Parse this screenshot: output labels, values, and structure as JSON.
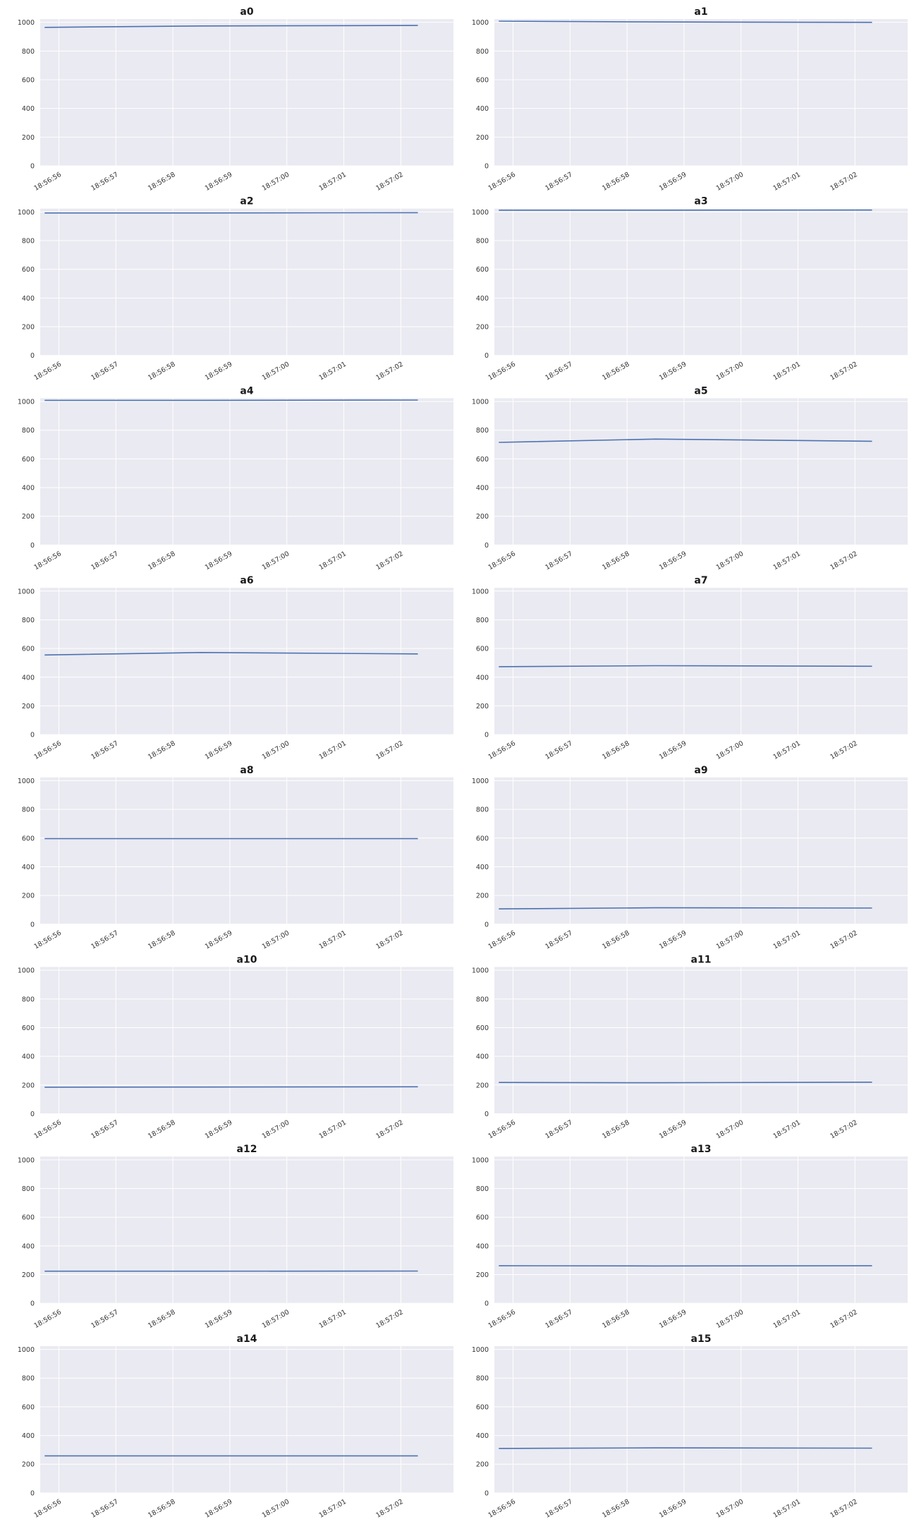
{
  "figure": {
    "background": "#ffffff",
    "axes_facecolor": "#eaeaf2",
    "grid_color": "#ffffff",
    "line_color": "#4c72b0",
    "layout": "8 rows x 2 columns"
  },
  "chart_data": [
    {
      "type": "line",
      "title": "a0",
      "xlabel": "",
      "ylabel": "",
      "x": [
        "18:56:55.75",
        "18:56:58.5",
        "18:57:02.3"
      ],
      "y": [
        965,
        975,
        978
      ],
      "x_ticks": [
        "18:56:56",
        "18:56:57",
        "18:56:58",
        "18:56:59",
        "18:57:00",
        "18:57:01",
        "18:57:02"
      ],
      "y_ticks": [
        0,
        200,
        400,
        600,
        800,
        1000
      ],
      "ylim": [
        0,
        1023
      ],
      "grid": true
    },
    {
      "type": "line",
      "title": "a1",
      "xlabel": "",
      "ylabel": "",
      "x": [
        "18:56:55.75",
        "18:56:58.5",
        "18:57:02.3"
      ],
      "y": [
        1008,
        1003,
        1000
      ],
      "x_ticks": [
        "18:56:56",
        "18:56:57",
        "18:56:58",
        "18:56:59",
        "18:57:00",
        "18:57:01",
        "18:57:02"
      ],
      "y_ticks": [
        0,
        200,
        400,
        600,
        800,
        1000
      ],
      "ylim": [
        0,
        1023
      ],
      "grid": true
    },
    {
      "type": "line",
      "title": "a2",
      "xlabel": "",
      "ylabel": "",
      "x": [
        "18:56:55.75",
        "18:56:58.5",
        "18:57:02.3"
      ],
      "y": [
        993,
        993,
        995
      ],
      "x_ticks": [
        "18:56:56",
        "18:56:57",
        "18:56:58",
        "18:56:59",
        "18:57:00",
        "18:57:01",
        "18:57:02"
      ],
      "y_ticks": [
        0,
        200,
        400,
        600,
        800,
        1000
      ],
      "ylim": [
        0,
        1023
      ],
      "grid": true
    },
    {
      "type": "line",
      "title": "a3",
      "xlabel": "",
      "ylabel": "",
      "x": [
        "18:56:55.75",
        "18:56:58.5",
        "18:57:02.3"
      ],
      "y": [
        1012,
        1012,
        1013
      ],
      "x_ticks": [
        "18:56:56",
        "18:56:57",
        "18:56:58",
        "18:56:59",
        "18:57:00",
        "18:57:01",
        "18:57:02"
      ],
      "y_ticks": [
        0,
        200,
        400,
        600,
        800,
        1000
      ],
      "ylim": [
        0,
        1023
      ],
      "grid": true
    },
    {
      "type": "line",
      "title": "a4",
      "xlabel": "",
      "ylabel": "",
      "x": [
        "18:56:55.75",
        "18:56:58.5",
        "18:57:02.3"
      ],
      "y": [
        1008,
        1008,
        1010
      ],
      "x_ticks": [
        "18:56:56",
        "18:56:57",
        "18:56:58",
        "18:56:59",
        "18:57:00",
        "18:57:01",
        "18:57:02"
      ],
      "y_ticks": [
        0,
        200,
        400,
        600,
        800,
        1000
      ],
      "ylim": [
        0,
        1023
      ],
      "grid": true
    },
    {
      "type": "line",
      "title": "a5",
      "xlabel": "",
      "ylabel": "",
      "x": [
        "18:56:55.75",
        "18:56:58.5",
        "18:57:02.3"
      ],
      "y": [
        715,
        738,
        723
      ],
      "x_ticks": [
        "18:56:56",
        "18:56:57",
        "18:56:58",
        "18:56:59",
        "18:57:00",
        "18:57:01",
        "18:57:02"
      ],
      "y_ticks": [
        0,
        200,
        400,
        600,
        800,
        1000
      ],
      "ylim": [
        0,
        1023
      ],
      "grid": true
    },
    {
      "type": "line",
      "title": "a6",
      "xlabel": "",
      "ylabel": "",
      "x": [
        "18:56:55.75",
        "18:56:58.5",
        "18:57:02.3"
      ],
      "y": [
        555,
        572,
        562
      ],
      "x_ticks": [
        "18:56:56",
        "18:56:57",
        "18:56:58",
        "18:56:59",
        "18:57:00",
        "18:57:01",
        "18:57:02"
      ],
      "y_ticks": [
        0,
        200,
        400,
        600,
        800,
        1000
      ],
      "ylim": [
        0,
        1023
      ],
      "grid": true
    },
    {
      "type": "line",
      "title": "a7",
      "xlabel": "",
      "ylabel": "",
      "x": [
        "18:56:55.75",
        "18:56:58.5",
        "18:57:02.3"
      ],
      "y": [
        473,
        480,
        476
      ],
      "x_ticks": [
        "18:56:56",
        "18:56:57",
        "18:56:58",
        "18:56:59",
        "18:57:00",
        "18:57:01",
        "18:57:02"
      ],
      "y_ticks": [
        0,
        200,
        400,
        600,
        800,
        1000
      ],
      "ylim": [
        0,
        1023
      ],
      "grid": true
    },
    {
      "type": "line",
      "title": "a8",
      "xlabel": "",
      "ylabel": "",
      "x": [
        "18:56:55.75",
        "18:56:58.5",
        "18:57:02.3"
      ],
      "y": [
        596,
        596,
        596
      ],
      "x_ticks": [
        "18:56:56",
        "18:56:57",
        "18:56:58",
        "18:56:59",
        "18:57:00",
        "18:57:01",
        "18:57:02"
      ],
      "y_ticks": [
        0,
        200,
        400,
        600,
        800,
        1000
      ],
      "ylim": [
        0,
        1023
      ],
      "grid": true
    },
    {
      "type": "line",
      "title": "a9",
      "xlabel": "",
      "ylabel": "",
      "x": [
        "18:56:55.75",
        "18:56:58.5",
        "18:57:02.3"
      ],
      "y": [
        106,
        114,
        112
      ],
      "x_ticks": [
        "18:56:56",
        "18:56:57",
        "18:56:58",
        "18:56:59",
        "18:57:00",
        "18:57:01",
        "18:57:02"
      ],
      "y_ticks": [
        0,
        200,
        400,
        600,
        800,
        1000
      ],
      "ylim": [
        0,
        1023
      ],
      "grid": true
    },
    {
      "type": "line",
      "title": "a10",
      "xlabel": "",
      "ylabel": "",
      "x": [
        "18:56:55.75",
        "18:56:58.5",
        "18:57:02.3"
      ],
      "y": [
        185,
        186,
        188
      ],
      "x_ticks": [
        "18:56:56",
        "18:56:57",
        "18:56:58",
        "18:56:59",
        "18:57:00",
        "18:57:01",
        "18:57:02"
      ],
      "y_ticks": [
        0,
        200,
        400,
        600,
        800,
        1000
      ],
      "ylim": [
        0,
        1023
      ],
      "grid": true
    },
    {
      "type": "line",
      "title": "a11",
      "xlabel": "",
      "ylabel": "",
      "x": [
        "18:56:55.75",
        "18:56:58.5",
        "18:57:02.3"
      ],
      "y": [
        218,
        216,
        220
      ],
      "x_ticks": [
        "18:56:56",
        "18:56:57",
        "18:56:58",
        "18:56:59",
        "18:57:00",
        "18:57:01",
        "18:57:02"
      ],
      "y_ticks": [
        0,
        200,
        400,
        600,
        800,
        1000
      ],
      "ylim": [
        0,
        1023
      ],
      "grid": true
    },
    {
      "type": "line",
      "title": "a12",
      "xlabel": "",
      "ylabel": "",
      "x": [
        "18:56:55.75",
        "18:56:58.5",
        "18:57:02.3"
      ],
      "y": [
        224,
        224,
        225
      ],
      "x_ticks": [
        "18:56:56",
        "18:56:57",
        "18:56:58",
        "18:56:59",
        "18:57:00",
        "18:57:01",
        "18:57:02"
      ],
      "y_ticks": [
        0,
        200,
        400,
        600,
        800,
        1000
      ],
      "ylim": [
        0,
        1023
      ],
      "grid": true
    },
    {
      "type": "line",
      "title": "a13",
      "xlabel": "",
      "ylabel": "",
      "x": [
        "18:56:55.75",
        "18:56:58.5",
        "18:57:02.3"
      ],
      "y": [
        262,
        260,
        262
      ],
      "x_ticks": [
        "18:56:56",
        "18:56:57",
        "18:56:58",
        "18:56:59",
        "18:57:00",
        "18:57:01",
        "18:57:02"
      ],
      "y_ticks": [
        0,
        200,
        400,
        600,
        800,
        1000
      ],
      "ylim": [
        0,
        1023
      ],
      "grid": true
    },
    {
      "type": "line",
      "title": "a14",
      "xlabel": "",
      "ylabel": "",
      "x": [
        "18:56:55.75",
        "18:56:58.5",
        "18:57:02.3"
      ],
      "y": [
        258,
        258,
        258
      ],
      "x_ticks": [
        "18:56:56",
        "18:56:57",
        "18:56:58",
        "18:56:59",
        "18:57:00",
        "18:57:01",
        "18:57:02"
      ],
      "y_ticks": [
        0,
        200,
        400,
        600,
        800,
        1000
      ],
      "ylim": [
        0,
        1023
      ],
      "grid": true
    },
    {
      "type": "line",
      "title": "a15",
      "xlabel": "",
      "ylabel": "",
      "x": [
        "18:56:55.75",
        "18:56:58.5",
        "18:57:02.3"
      ],
      "y": [
        310,
        314,
        312
      ],
      "x_ticks": [
        "18:56:56",
        "18:56:57",
        "18:56:58",
        "18:56:59",
        "18:57:00",
        "18:57:01",
        "18:57:02"
      ],
      "y_ticks": [
        0,
        200,
        400,
        600,
        800,
        1000
      ],
      "ylim": [
        0,
        1023
      ],
      "grid": true
    }
  ]
}
